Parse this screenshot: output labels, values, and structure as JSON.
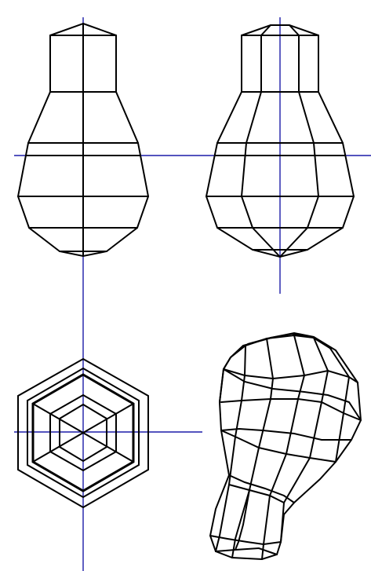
{
  "drawing": {
    "views": [
      "front",
      "side",
      "top",
      "isometric"
    ],
    "colors": {
      "background": "#ffffff",
      "edges": "#000000",
      "axes": "#1c1ca8"
    }
  }
}
